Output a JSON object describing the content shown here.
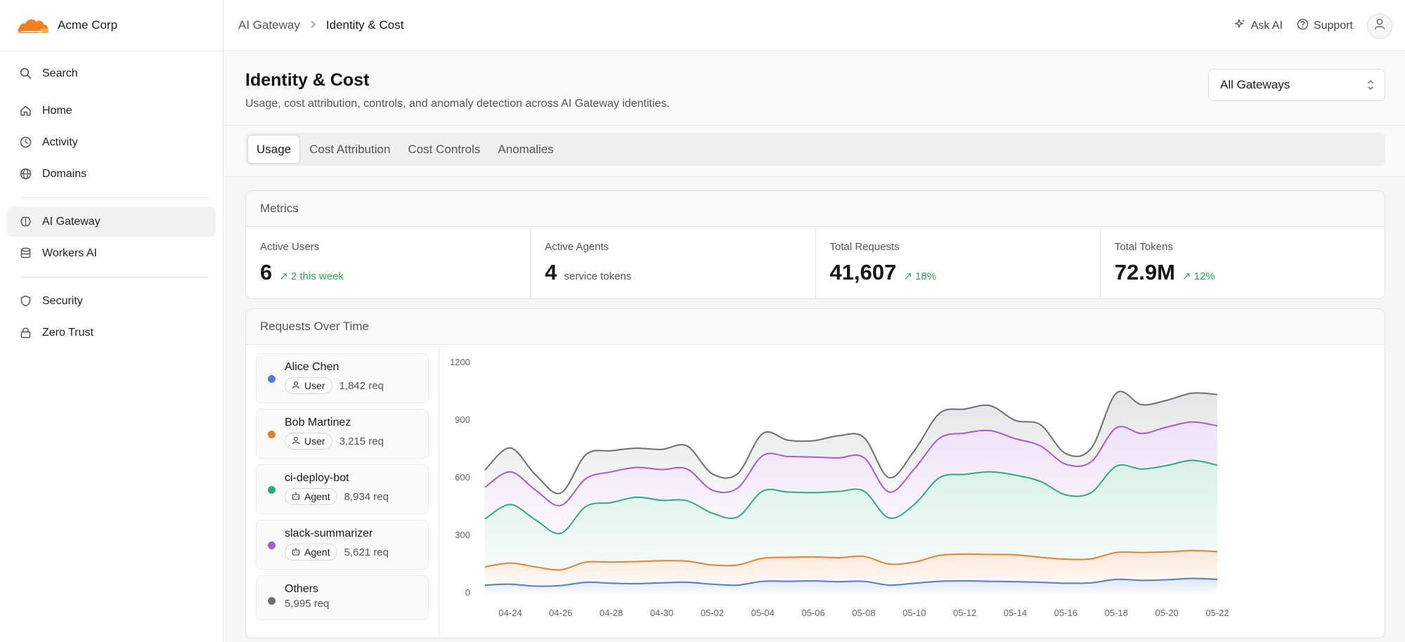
{
  "brand": {
    "name": "Acme Corp"
  },
  "sidebar": {
    "search_label": "Search",
    "group1": [
      {
        "label": "Home",
        "icon": "home-icon"
      },
      {
        "label": "Activity",
        "icon": "clock-icon"
      },
      {
        "label": "Domains",
        "icon": "globe-icon"
      }
    ],
    "group2": [
      {
        "label": "AI Gateway",
        "icon": "brain-icon",
        "active": true
      },
      {
        "label": "Workers AI",
        "icon": "database-icon"
      }
    ],
    "group3": [
      {
        "label": "Security",
        "icon": "shield-icon"
      },
      {
        "label": "Zero Trust",
        "icon": "lock-icon"
      }
    ]
  },
  "topbar": {
    "breadcrumb_parent": "AI Gateway",
    "breadcrumb_current": "Identity & Cost",
    "ask_ai_label": "Ask AI",
    "support_label": "Support"
  },
  "header": {
    "title": "Identity & Cost",
    "subtitle": "Usage, cost attribution, controls, and anomaly detection across AI Gateway identities.",
    "gateway_select": "All Gateways"
  },
  "tabs": [
    {
      "label": "Usage",
      "active": true
    },
    {
      "label": "Cost Attribution",
      "active": false
    },
    {
      "label": "Cost Controls",
      "active": false
    },
    {
      "label": "Anomalies",
      "active": false
    }
  ],
  "metrics": {
    "title": "Metrics",
    "items": [
      {
        "label": "Active Users",
        "value": "6",
        "delta": "2 this week",
        "note": ""
      },
      {
        "label": "Active Agents",
        "value": "4",
        "delta": "",
        "note": "service tokens"
      },
      {
        "label": "Total Requests",
        "value": "41,607",
        "delta": "18%",
        "note": ""
      },
      {
        "label": "Total Tokens",
        "value": "72.9M",
        "delta": "12%",
        "note": ""
      }
    ],
    "delta_color": "#2eaa4f"
  },
  "requests": {
    "title": "Requests Over Time",
    "legend": [
      {
        "name": "Alice Chen",
        "kind": "User",
        "req": "1,842 req",
        "color": "#4a7fd8"
      },
      {
        "name": "Bob Martinez",
        "kind": "User",
        "req": "3,215 req",
        "color": "#e8802f"
      },
      {
        "name": "ci-deploy-bot",
        "kind": "Agent",
        "req": "8,934 req",
        "color": "#2bab7e"
      },
      {
        "name": "slack-summarizer",
        "kind": "Agent",
        "req": "5,621 req",
        "color": "#a55ad8"
      },
      {
        "name": "Others",
        "kind": "",
        "req": "5,995 req",
        "color": "#6b6e75"
      }
    ]
  },
  "chart_data": {
    "type": "area",
    "stacked": true,
    "ylim": [
      0,
      1200
    ],
    "yticks": [
      "1200",
      "900",
      "600",
      "300",
      "0"
    ],
    "xticks": [
      "04-24",
      "04-26",
      "04-28",
      "04-30",
      "05-02",
      "05-04",
      "05-06",
      "05-08",
      "05-10",
      "05-12",
      "05-14",
      "05-16",
      "05-18",
      "05-20",
      "05-22"
    ],
    "x": [
      "04-23",
      "04-24",
      "04-25",
      "04-26",
      "04-27",
      "04-28",
      "04-29",
      "04-30",
      "05-01",
      "05-02",
      "05-03",
      "05-04",
      "05-05",
      "05-06",
      "05-07",
      "05-08",
      "05-09",
      "05-10",
      "05-11",
      "05-12",
      "05-13",
      "05-14",
      "05-15",
      "05-16",
      "05-17",
      "05-18",
      "05-19",
      "05-20",
      "05-21",
      "05-22"
    ],
    "series": [
      {
        "name": "Alice Chen",
        "color": "#4a7fd8",
        "values": [
          40,
          45,
          35,
          38,
          55,
          50,
          48,
          52,
          55,
          45,
          40,
          60,
          60,
          62,
          58,
          60,
          40,
          50,
          60,
          62,
          60,
          58,
          55,
          50,
          52,
          70,
          65,
          68,
          75,
          70
        ]
      },
      {
        "name": "Bob Martinez",
        "color": "#e8802f",
        "values": [
          95,
          110,
          100,
          82,
          105,
          110,
          115,
          115,
          110,
          100,
          105,
          120,
          125,
          125,
          125,
          130,
          110,
          110,
          135,
          140,
          140,
          140,
          130,
          125,
          125,
          140,
          145,
          145,
          145,
          145
        ]
      },
      {
        "name": "ci-deploy-bot",
        "color": "#2bab7e",
        "values": [
          250,
          305,
          245,
          190,
          290,
          310,
          335,
          315,
          315,
          270,
          250,
          350,
          340,
          335,
          345,
          340,
          240,
          300,
          405,
          415,
          430,
          415,
          395,
          335,
          345,
          450,
          435,
          450,
          470,
          450
        ]
      },
      {
        "name": "slack-summarizer",
        "color": "#a55ad8",
        "values": [
          165,
          170,
          155,
          145,
          145,
          160,
          155,
          160,
          165,
          120,
          150,
          185,
          185,
          185,
          175,
          175,
          135,
          185,
          205,
          215,
          215,
          190,
          185,
          160,
          160,
          200,
          185,
          200,
          200,
          205
        ]
      },
      {
        "name": "Others",
        "color": "#6b6e75",
        "values": [
          90,
          125,
          80,
          65,
          125,
          110,
          100,
          105,
          120,
          85,
          75,
          115,
          85,
          85,
          115,
          105,
          75,
          95,
          130,
          125,
          130,
          95,
          110,
          55,
          70,
          180,
          150,
          140,
          150,
          163
        ]
      }
    ]
  }
}
